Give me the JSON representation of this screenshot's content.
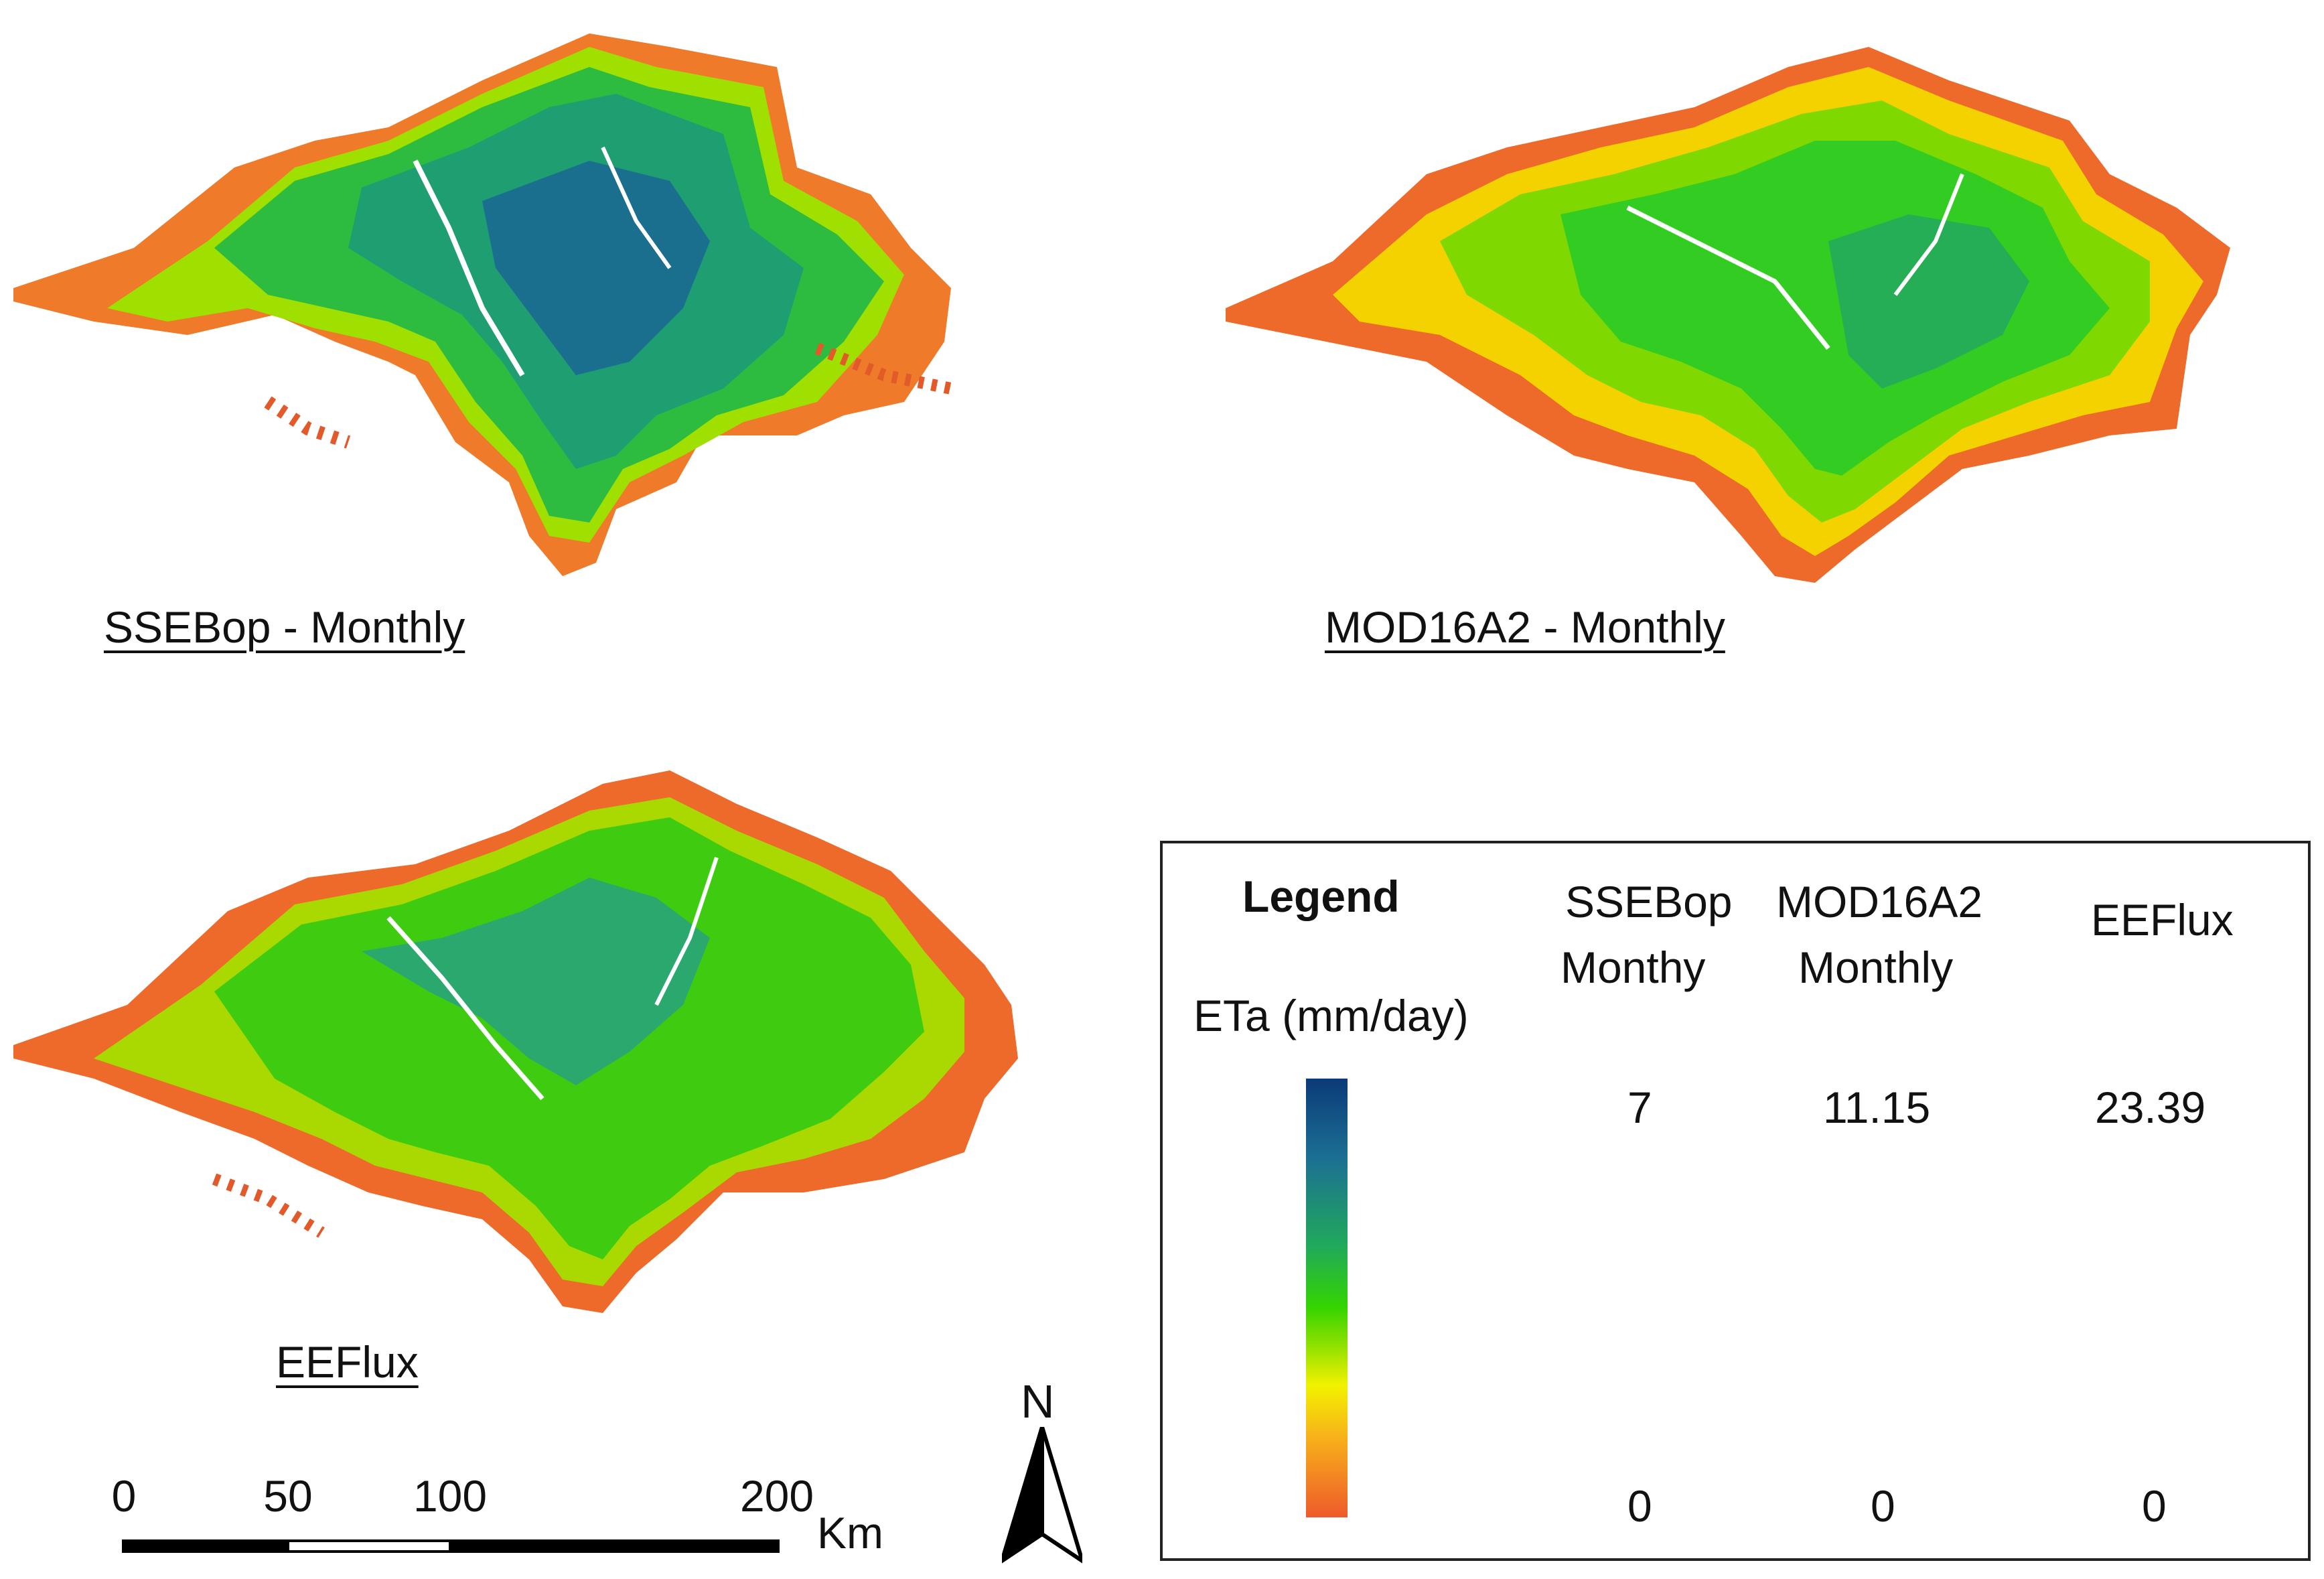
{
  "maps": [
    {
      "title": "SSEBop - Monthly"
    },
    {
      "title": "MOD16A2 - Monthly"
    },
    {
      "title": "EEFlux"
    }
  ],
  "legend": {
    "title": "Legend",
    "ramp_label": "ETa (mm/day)",
    "ramp_colors": [
      "#0b3a78",
      "#1c6f93",
      "#20a95c",
      "#34d400",
      "#9be300",
      "#f2f200",
      "#f7b01a",
      "#ee5a2a"
    ],
    "columns": [
      {
        "line1": "SSEBop",
        "line2": "Monthy",
        "max": "7",
        "min": "0"
      },
      {
        "line1": "MOD16A2",
        "line2": "Monthly",
        "max": "11.15",
        "min": "0"
      },
      {
        "line1": "EEFlux",
        "line2": "",
        "max": "23.39",
        "min": "0"
      }
    ]
  },
  "scale_bar": {
    "ticks": [
      "0",
      "50",
      "100",
      "200"
    ],
    "unit": "Km"
  },
  "north_arrow": {
    "label": "N"
  }
}
